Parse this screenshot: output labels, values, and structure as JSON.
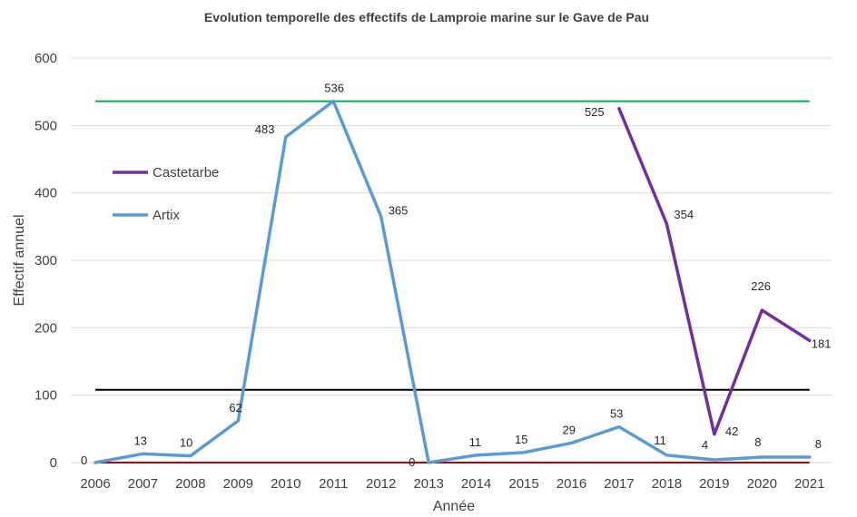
{
  "chart_data": {
    "type": "line",
    "title": "Evolution temporelle des effectifs de Lamproie marine sur le Gave de Pau",
    "xlabel": "Année",
    "ylabel": "Effectif annuel",
    "ylim": [
      0,
      600
    ],
    "yticks": [
      "0",
      "100",
      "200",
      "300",
      "400",
      "500",
      "600"
    ],
    "categories": [
      "2006",
      "2007",
      "2008",
      "2009",
      "2010",
      "2011",
      "2012",
      "2013",
      "2014",
      "2015",
      "2016",
      "2017",
      "2018",
      "2019",
      "2020",
      "2021"
    ],
    "grid": true,
    "legend_position": "left",
    "series": [
      {
        "name": "Castetarbe",
        "color": "#7030a0",
        "values": [
          null,
          null,
          null,
          null,
          null,
          null,
          null,
          null,
          null,
          null,
          null,
          525,
          354,
          42,
          226,
          181
        ],
        "labels": [
          null,
          null,
          null,
          null,
          null,
          null,
          null,
          null,
          null,
          null,
          null,
          "525",
          "354",
          "42",
          "226",
          "181"
        ]
      },
      {
        "name": "Artix",
        "color": "#5b9bd5",
        "values": [
          0,
          13,
          10,
          62,
          483,
          536,
          365,
          0,
          11,
          15,
          29,
          53,
          11,
          4,
          8,
          8
        ],
        "labels": [
          "0",
          "13",
          "10",
          "62",
          "483",
          "536",
          "365",
          "0",
          "11",
          "15",
          "29",
          "53",
          "11",
          "4",
          "8",
          "8"
        ]
      }
    ],
    "reference_lines": [
      {
        "value": 536,
        "color": "#00b050"
      },
      {
        "value": 108,
        "color": "#000000"
      },
      {
        "value": 0,
        "color": "#c00000"
      }
    ]
  }
}
